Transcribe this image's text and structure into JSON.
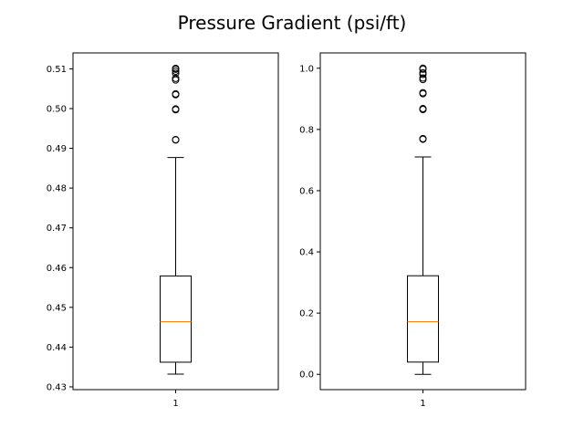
{
  "title": "Pressure Gradient (psi/ft)",
  "colors": {
    "box": "#000000",
    "median": "#ff7f0e",
    "flier": "#000000",
    "background": "#ffffff"
  },
  "chart_data": [
    {
      "type": "box",
      "categories": [
        "1"
      ],
      "ylim": [
        0.4293,
        0.514
      ],
      "yticks": [
        0.43,
        0.44,
        0.45,
        0.46,
        0.47,
        0.48,
        0.49,
        0.5,
        0.51
      ],
      "ytick_labels": [
        "0.43",
        "0.44",
        "0.45",
        "0.46",
        "0.47",
        "0.48",
        "0.49",
        "0.50",
        "0.51"
      ],
      "xtick_labels": [
        "1"
      ],
      "grid": false,
      "box": {
        "whisker_low": 0.4332,
        "q1": 0.4362,
        "median": 0.4464,
        "q3": 0.4579,
        "whisker_high": 0.4877
      },
      "fliers": [
        0.4921,
        0.4922,
        0.4997,
        0.4999,
        0.5035,
        0.5037,
        0.5072,
        0.5076,
        0.5089,
        0.5094,
        0.5099,
        0.5101
      ]
    },
    {
      "type": "box",
      "categories": [
        "1"
      ],
      "ylim": [
        -0.05,
        1.05
      ],
      "yticks": [
        0.0,
        0.2,
        0.4,
        0.6,
        0.8,
        1.0
      ],
      "ytick_labels": [
        "0.0",
        "0.2",
        "0.4",
        "0.6",
        "0.8",
        "1.0"
      ],
      "xtick_labels": [
        "1"
      ],
      "grid": false,
      "box": {
        "whisker_low": 0.0,
        "q1": 0.04,
        "median": 0.172,
        "q3": 0.322,
        "whisker_high": 0.71
      },
      "fliers": [
        0.768,
        0.77,
        0.865,
        0.868,
        0.917,
        0.92,
        0.963,
        0.968,
        0.98,
        0.985,
        0.997,
        1.0
      ]
    }
  ]
}
